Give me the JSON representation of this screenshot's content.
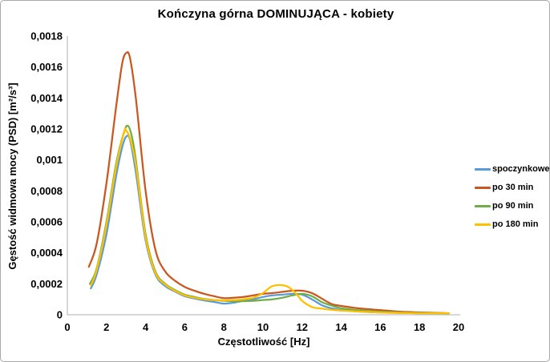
{
  "chart_data": {
    "type": "line",
    "title": "Kończyna górna DOMINUJĄCA - kobiety",
    "xlabel": "Częstotliwość [Hz]",
    "ylabel": "Gęstość widmowa mocy (PSD) [m²/s³]",
    "xlim": [
      0,
      20
    ],
    "ylim": [
      0,
      0.0018
    ],
    "grid": false,
    "legend_position": "right",
    "axis_color": "#bfbfbf",
    "text_color": "#000000",
    "xticks": {
      "values": [
        0,
        2,
        4,
        6,
        8,
        10,
        12,
        14,
        16,
        18,
        20
      ],
      "labels": [
        "0",
        "2",
        "4",
        "6",
        "8",
        "10",
        "12",
        "14",
        "16",
        "18",
        "20"
      ]
    },
    "yticks": {
      "values": [
        0,
        0.0002,
        0.0004,
        0.0006,
        0.0008,
        0.001,
        0.0012,
        0.0014,
        0.0016,
        0.0018
      ],
      "labels": [
        "0",
        "0,0002",
        "0,0004",
        "0,0006",
        "0,0008",
        "0,001",
        "0,0012",
        "0,0014",
        "0,0016",
        "0,0018"
      ]
    },
    "series": [
      {
        "name": "spoczynkowe",
        "color": "#5b9bd5",
        "points": [
          [
            1.2,
            0.00017
          ],
          [
            1.5,
            0.00026
          ],
          [
            2,
            0.00052
          ],
          [
            2.5,
            0.0009
          ],
          [
            2.8,
            0.00108
          ],
          [
            3,
            0.00115
          ],
          [
            3.2,
            0.00113
          ],
          [
            3.5,
            0.00092
          ],
          [
            4,
            0.00048
          ],
          [
            4.5,
            0.00026
          ],
          [
            5,
            0.000185
          ],
          [
            5.5,
            0.00015
          ],
          [
            6,
            0.00012
          ],
          [
            6.5,
            0.000105
          ],
          [
            7,
            9.2e-05
          ],
          [
            7.5,
            8.3e-05
          ],
          [
            8,
            7.2e-05
          ],
          [
            8.5,
            7.8e-05
          ],
          [
            9,
            9e-05
          ],
          [
            9.5,
            0.0001
          ],
          [
            10,
            0.000115
          ],
          [
            10.5,
            0.000125
          ],
          [
            11,
            0.00013
          ],
          [
            11.5,
            0.000135
          ],
          [
            12,
            0.00013
          ],
          [
            12.5,
            0.0001
          ],
          [
            13,
            6.2e-05
          ],
          [
            13.5,
            4.2e-05
          ],
          [
            14,
            3e-05
          ],
          [
            15,
            2e-05
          ],
          [
            16,
            1.5e-05
          ],
          [
            17,
            1.2e-05
          ],
          [
            18,
            1e-05
          ],
          [
            19,
            1e-05
          ],
          [
            19.5,
            1e-05
          ]
        ]
      },
      {
        "name": "po 30 min",
        "color": "#c9571e",
        "points": [
          [
            1.1,
            0.00031
          ],
          [
            1.5,
            0.00046
          ],
          [
            2,
            0.00085
          ],
          [
            2.5,
            0.00135
          ],
          [
            2.8,
            0.00162
          ],
          [
            3,
            0.00169
          ],
          [
            3.2,
            0.00166
          ],
          [
            3.5,
            0.0014
          ],
          [
            4,
            0.0008
          ],
          [
            4.5,
            0.00042
          ],
          [
            5,
            0.00028
          ],
          [
            5.5,
            0.00022
          ],
          [
            6,
            0.00018
          ],
          [
            6.5,
            0.000155
          ],
          [
            7,
            0.000135
          ],
          [
            7.5,
            0.00012
          ],
          [
            8,
            0.000107
          ],
          [
            8.5,
            0.00011
          ],
          [
            9,
            0.000115
          ],
          [
            9.5,
            0.000125
          ],
          [
            10,
            0.000135
          ],
          [
            10.5,
            0.00014
          ],
          [
            11,
            0.000148
          ],
          [
            11.5,
            0.000155
          ],
          [
            12,
            0.000155
          ],
          [
            12.5,
            0.00014
          ],
          [
            13,
            0.000105
          ],
          [
            13.5,
            7e-05
          ],
          [
            14,
            5.7e-05
          ],
          [
            15,
            4e-05
          ],
          [
            16,
            3e-05
          ],
          [
            17,
            2e-05
          ],
          [
            18,
            1.5e-05
          ],
          [
            19,
            1.2e-05
          ],
          [
            19.5,
            1e-05
          ]
        ]
      },
      {
        "name": "po 90 min",
        "color": "#70ad47",
        "points": [
          [
            1.15,
            0.0002
          ],
          [
            1.5,
            0.0003
          ],
          [
            2,
            0.0006
          ],
          [
            2.5,
            0.00098
          ],
          [
            2.9,
            0.00118
          ],
          [
            3.1,
            0.00122
          ],
          [
            3.3,
            0.00115
          ],
          [
            3.5,
            0.001
          ],
          [
            4,
            0.00052
          ],
          [
            4.5,
            0.00028
          ],
          [
            5,
            0.0002
          ],
          [
            5.5,
            0.00016
          ],
          [
            6,
            0.00013
          ],
          [
            6.5,
            0.000115
          ],
          [
            7,
            0.000102
          ],
          [
            7.5,
            9.5e-05
          ],
          [
            8,
            9e-05
          ],
          [
            8.5,
            8.8e-05
          ],
          [
            9,
            8.8e-05
          ],
          [
            9.5,
            9e-05
          ],
          [
            10,
            9.5e-05
          ],
          [
            10.5,
            0.0001
          ],
          [
            11,
            0.00011
          ],
          [
            11.5,
            0.000125
          ],
          [
            12,
            0.000135
          ],
          [
            12.5,
            0.00012
          ],
          [
            13,
            8.2e-05
          ],
          [
            13.5,
            6e-05
          ],
          [
            14,
            4.2e-05
          ],
          [
            15,
            2.8e-05
          ],
          [
            16,
            2e-05
          ],
          [
            17,
            1.5e-05
          ],
          [
            18,
            1.2e-05
          ],
          [
            19,
            1e-05
          ],
          [
            19.5,
            1e-05
          ]
        ]
      },
      {
        "name": "po 180 min",
        "color": "#ffc000",
        "points": [
          [
            1.2,
            0.00019
          ],
          [
            1.5,
            0.00029
          ],
          [
            2,
            0.00058
          ],
          [
            2.5,
            0.00096
          ],
          [
            2.9,
            0.00118
          ],
          [
            3,
            0.00119
          ],
          [
            3.2,
            0.00114
          ],
          [
            3.5,
            0.00097
          ],
          [
            4,
            0.0005
          ],
          [
            4.5,
            0.00027
          ],
          [
            5,
            0.000195
          ],
          [
            5.5,
            0.000155
          ],
          [
            6,
            0.000125
          ],
          [
            6.5,
            0.00011
          ],
          [
            7,
            0.0001
          ],
          [
            7.5,
            9.5e-05
          ],
          [
            8,
            9.2e-05
          ],
          [
            8.5,
            9.5e-05
          ],
          [
            9,
            0.0001
          ],
          [
            9.5,
            0.00011
          ],
          [
            10,
            0.00014
          ],
          [
            10.4,
            0.00018
          ],
          [
            10.8,
            0.000192
          ],
          [
            11.2,
            0.000185
          ],
          [
            11.5,
            0.00016
          ],
          [
            11.8,
            0.00012
          ],
          [
            12,
            9e-05
          ],
          [
            12.5,
            5e-05
          ],
          [
            13,
            4e-05
          ],
          [
            13.5,
            3.2e-05
          ],
          [
            14,
            2.7e-05
          ],
          [
            15,
            2e-05
          ],
          [
            16,
            1.5e-05
          ],
          [
            17,
            1.2e-05
          ],
          [
            18,
            1e-05
          ],
          [
            19,
            1e-05
          ],
          [
            19.5,
            1e-05
          ]
        ]
      }
    ]
  }
}
